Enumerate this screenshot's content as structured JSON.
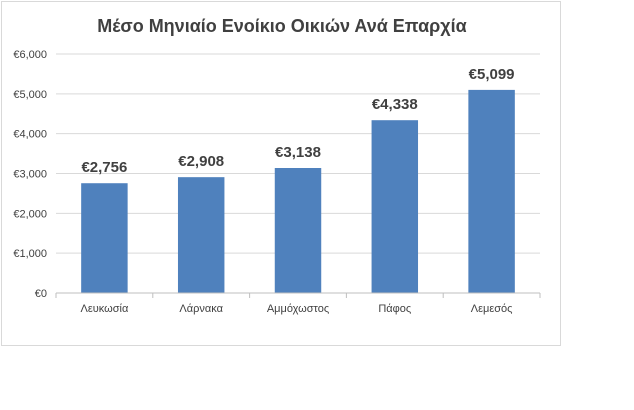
{
  "chart_data": {
    "type": "bar",
    "title": "Μέσο Μηνιαίο Ενοίκιο Οικιών Ανά Επαρχία",
    "xlabel": "",
    "ylabel": "",
    "categories": [
      "Λευκωσία",
      "Λάρνακα",
      "Αμμόχωστος",
      "Πάφος",
      "Λεμεσός"
    ],
    "values": [
      2756,
      2908,
      3138,
      4338,
      5099
    ],
    "data_labels": [
      "€2,756",
      "€2,908",
      "€3,138",
      "€4,338",
      "€5,099"
    ],
    "ylim": [
      0,
      6000
    ],
    "yticks": [
      0,
      1000,
      2000,
      3000,
      4000,
      5000,
      6000
    ],
    "ytick_labels": [
      "€0",
      "€1,000",
      "€2,000",
      "€3,000",
      "€4,000",
      "€5,000",
      "€6,000"
    ],
    "grid": true,
    "legend": "none",
    "colors": {
      "bar": "#4f81bd",
      "grid": "#d9d9d9",
      "axis": "#bfbfbf",
      "text": "#404040"
    }
  }
}
